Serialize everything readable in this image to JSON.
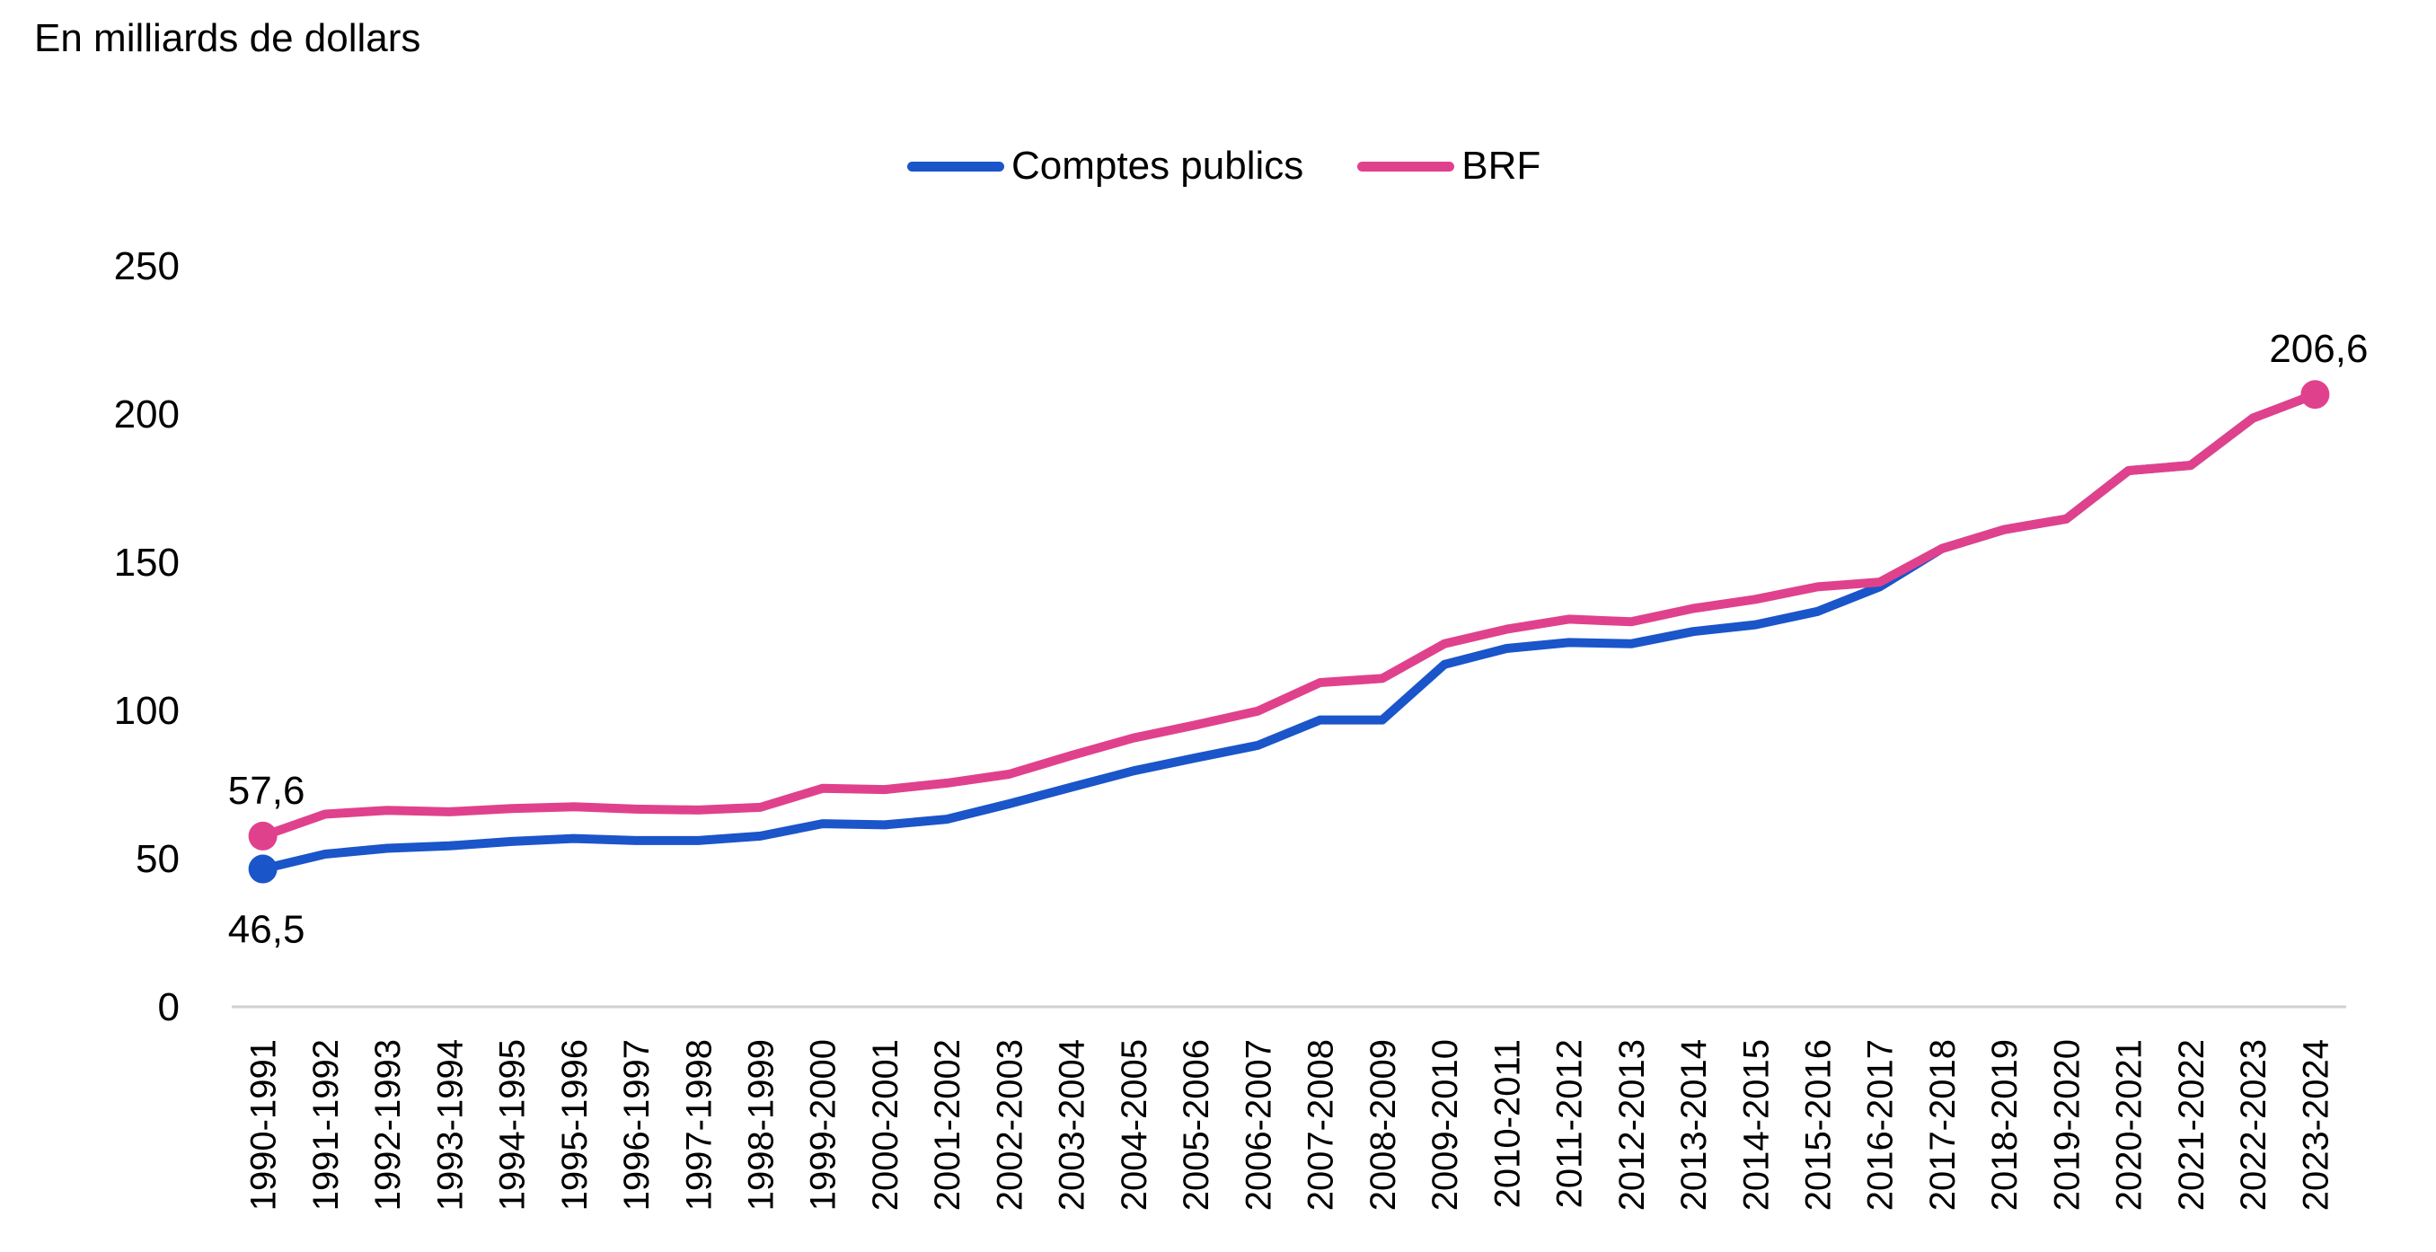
{
  "chart_data": {
    "type": "line",
    "title": "",
    "unit_label": "En milliards de dollars",
    "xlabel": "",
    "ylabel": "",
    "ylim": [
      0,
      250
    ],
    "yticks": [
      0,
      50,
      100,
      150,
      200,
      250
    ],
    "grid": false,
    "legend_position": "top-center",
    "categories": [
      "1990-1991",
      "1991-1992",
      "1992-1993",
      "1993-1994",
      "1994-1995",
      "1995-1996",
      "1996-1997",
      "1997-1998",
      "1998-1999",
      "1999-2000",
      "2000-2001",
      "2001-2002",
      "2002-2003",
      "2003-2004",
      "2004-2005",
      "2005-2006",
      "2006-2007",
      "2007-2008",
      "2008-2009",
      "2009-2010",
      "2010-2011",
      "2011-2012",
      "2012-2013",
      "2013-2014",
      "2014-2015",
      "2015-2016",
      "2016-2017",
      "2017-2018",
      "2018-2019",
      "2019-2020",
      "2020-2021",
      "2021-2022",
      "2022-2023",
      "2023-2024"
    ],
    "series": [
      {
        "name": "Comptes publics",
        "color": "#1a55c9",
        "values": [
          46.5,
          51.5,
          53.5,
          54.3,
          55.8,
          56.8,
          56.1,
          56.1,
          57.6,
          61.8,
          61.4,
          63.3,
          68.5,
          74.1,
          79.6,
          84.0,
          88.2,
          96.8,
          96.8,
          115.5,
          120.9,
          122.9,
          122.5,
          126.6,
          128.9,
          133.4,
          141.7,
          154.6,
          161.0,
          164.6,
          180.9,
          182.7,
          198.6,
          206.6
        ],
        "labels": [
          {
            "index": 0,
            "text": "46,5"
          }
        ]
      },
      {
        "name": "BRF",
        "color": "#e0418d",
        "values": [
          57.6,
          65.0,
          66.3,
          65.8,
          66.9,
          67.5,
          66.7,
          66.4,
          67.3,
          73.7,
          73.3,
          75.5,
          78.5,
          84.8,
          90.7,
          95.1,
          99.8,
          109.4,
          110.8,
          122.5,
          127.4,
          130.8,
          129.9,
          134.4,
          137.5,
          141.7,
          143.3,
          154.6,
          161.0,
          164.6,
          180.9,
          182.7,
          198.6,
          206.6
        ],
        "labels": [
          {
            "index": 0,
            "text": "57,6"
          },
          {
            "index": 33,
            "text": "206,6"
          }
        ]
      }
    ]
  }
}
